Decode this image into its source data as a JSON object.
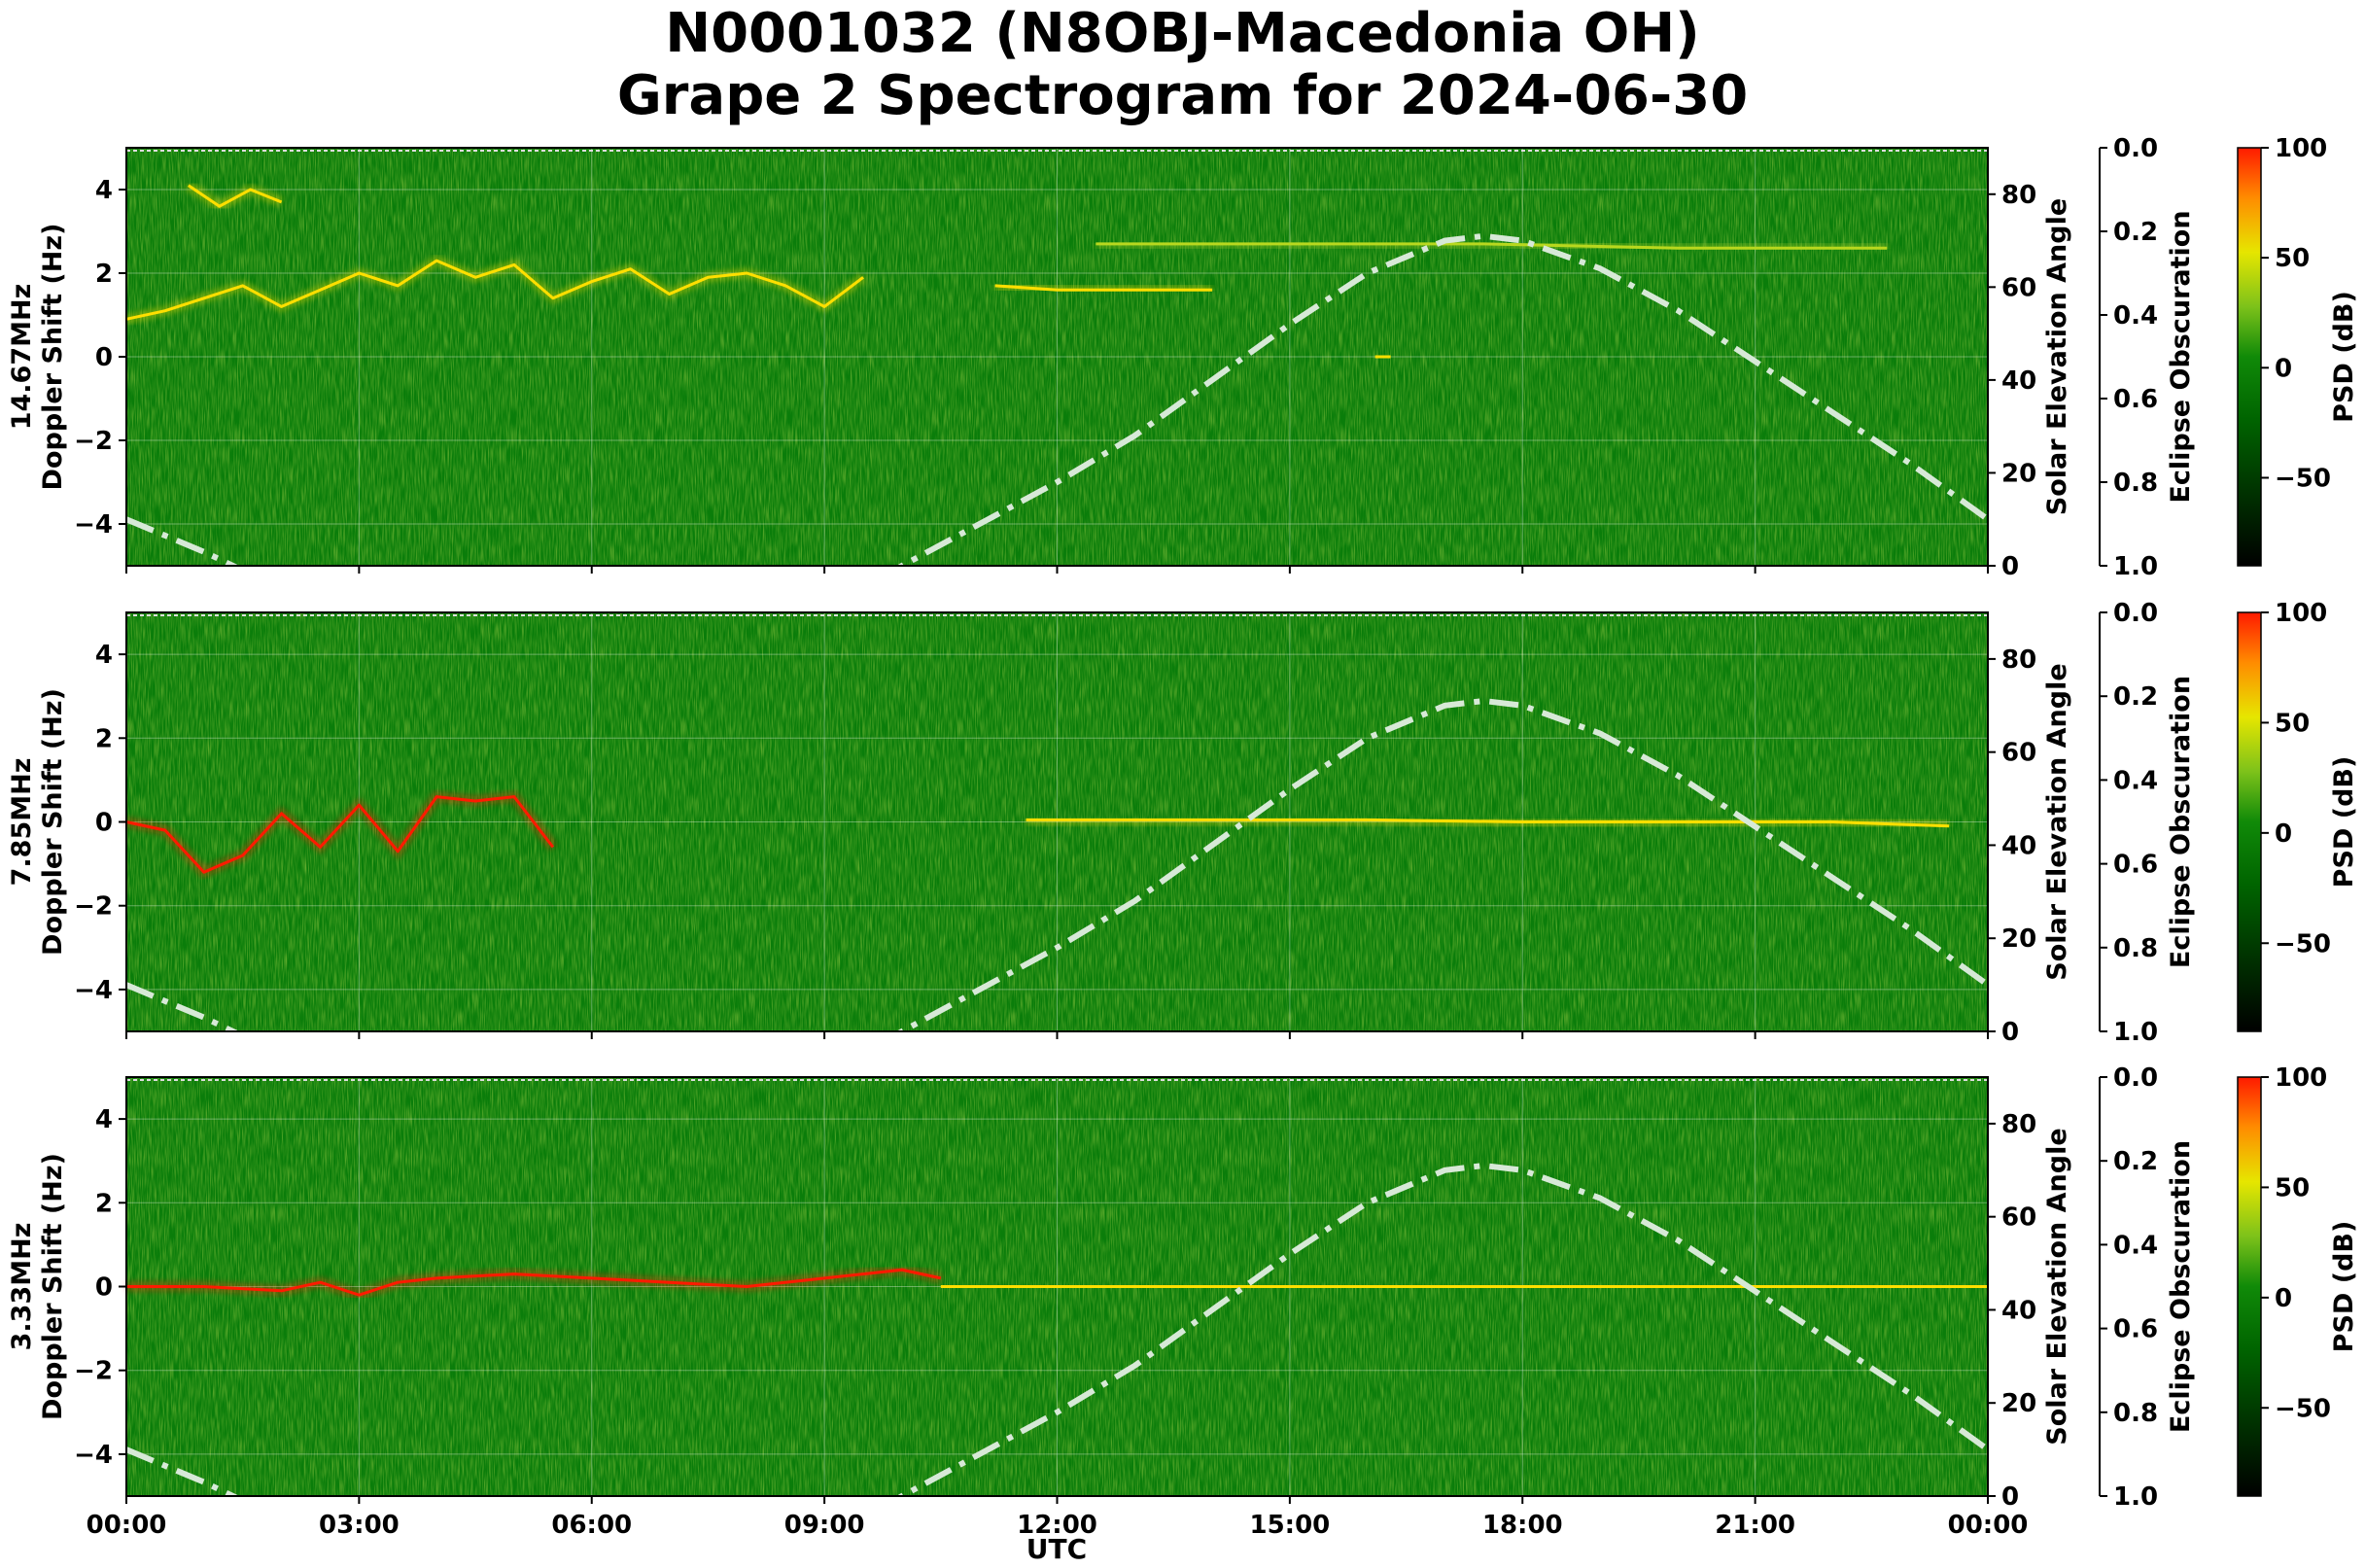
{
  "title_line1": "N0001032 (N8OBJ-Macedonia OH)",
  "title_line2": "Grape 2 Spectrogram for 2024-06-30",
  "chart_data": {
    "type": "heatmap",
    "xlabel": "UTC",
    "x_ticks": [
      "00:00",
      "03:00",
      "06:00",
      "09:00",
      "12:00",
      "15:00",
      "18:00",
      "21:00",
      "00:00"
    ],
    "xlim_hours": [
      0,
      24
    ],
    "ylabel": "Doppler Shift (Hz)",
    "ylim": [
      -5,
      5
    ],
    "y_ticks": [
      4,
      2,
      0,
      -2,
      -4
    ],
    "y2label": "Solar Elevation Angle",
    "y2lim": [
      0,
      90
    ],
    "y2_ticks": [
      80,
      60,
      40,
      20,
      0
    ],
    "eclipse_label": "Eclipse Obscuration",
    "eclipse_lim": [
      0.0,
      1.0
    ],
    "eclipse_ticks": [
      "0.0",
      "0.2",
      "0.4",
      "0.6",
      "0.8",
      "1.0"
    ],
    "colorbar_label": "PSD (dB)",
    "colorbar_ticks": [
      100,
      50,
      0,
      -50
    ],
    "colorbar_range": [
      -90,
      100
    ],
    "grid": true,
    "colors": {
      "background": "#0a7d0a",
      "mid": "#b8d81e",
      "high": "#ffdf00",
      "peak": "#ff1a00",
      "solar_curve": "#d7e9d7"
    },
    "solar_elevation": {
      "x": [
        0,
        1,
        2,
        3,
        4,
        5,
        6,
        7,
        8,
        9,
        10,
        11,
        12,
        13,
        14,
        15,
        16,
        17,
        17.5,
        18,
        19,
        20,
        21,
        22,
        23,
        24
      ],
      "y": [
        10,
        3,
        -5,
        -12,
        -19,
        -25,
        -28,
        -27,
        -22,
        -10,
        0,
        9,
        18,
        28,
        40,
        52,
        63,
        70,
        71,
        70,
        64,
        55,
        44,
        33,
        22,
        10
      ]
    },
    "panels": [
      {
        "freq_label": "14.67MHz",
        "traces": [
          {
            "x": [
              0,
              0.5,
              1,
              1.5,
              2,
              2.5,
              3,
              3.5,
              4,
              4.5,
              5,
              5.5,
              6,
              6.5,
              7,
              7.5,
              8,
              8.5,
              9,
              9.5
            ],
            "y": [
              0.9,
              1.1,
              1.4,
              1.7,
              1.2,
              1.6,
              2.0,
              1.7,
              2.3,
              1.9,
              2.2,
              1.4,
              1.8,
              2.1,
              1.5,
              1.9,
              2.0,
              1.7,
              1.2,
              1.9
            ],
            "level": "high"
          },
          {
            "x": [
              0.8,
              1.2,
              1.6,
              2.0
            ],
            "y": [
              4.1,
              3.6,
              4.0,
              3.7
            ],
            "level": "high"
          },
          {
            "x": [
              11.2,
              12,
              13,
              14
            ],
            "y": [
              1.7,
              1.6,
              1.6,
              1.6
            ],
            "level": "high"
          },
          {
            "x": [
              12.5,
              15,
              17.5,
              20,
              22.7
            ],
            "y": [
              2.7,
              2.7,
              2.7,
              2.6,
              2.6
            ],
            "level": "mid"
          },
          {
            "x": [
              16.1,
              16.3
            ],
            "y": [
              0.0,
              0.0
            ],
            "level": "high"
          }
        ]
      },
      {
        "freq_label": "7.85MHz",
        "traces": [
          {
            "x": [
              0,
              0.5,
              1,
              1.5,
              2,
              2.5,
              3,
              3.5,
              4,
              4.5,
              5,
              5.5
            ],
            "y": [
              0.0,
              -0.2,
              -1.2,
              -0.8,
              0.2,
              -0.6,
              0.4,
              -0.7,
              0.6,
              0.5,
              0.6,
              -0.6
            ],
            "level": "peak"
          },
          {
            "x": [
              11.6,
              14,
              16,
              18,
              20,
              22,
              23.5
            ],
            "y": [
              0.05,
              0.05,
              0.05,
              0.0,
              0.0,
              0.0,
              -0.1
            ],
            "level": "high"
          }
        ]
      },
      {
        "freq_label": "3.33MHz",
        "traces": [
          {
            "x": [
              0,
              1,
              2,
              2.5,
              3,
              3.5,
              4,
              5,
              6,
              7,
              8,
              9,
              9.5,
              10,
              10.5
            ],
            "y": [
              0.0,
              0.0,
              -0.1,
              0.1,
              -0.2,
              0.1,
              0.2,
              0.3,
              0.2,
              0.1,
              0.0,
              0.2,
              0.3,
              0.4,
              0.2
            ],
            "level": "peak"
          },
          {
            "x": [
              10.5,
              13,
              16,
              19,
              22,
              24
            ],
            "y": [
              0.0,
              0.0,
              0.0,
              0.0,
              0.0,
              0.0
            ],
            "level": "high"
          }
        ]
      }
    ]
  }
}
